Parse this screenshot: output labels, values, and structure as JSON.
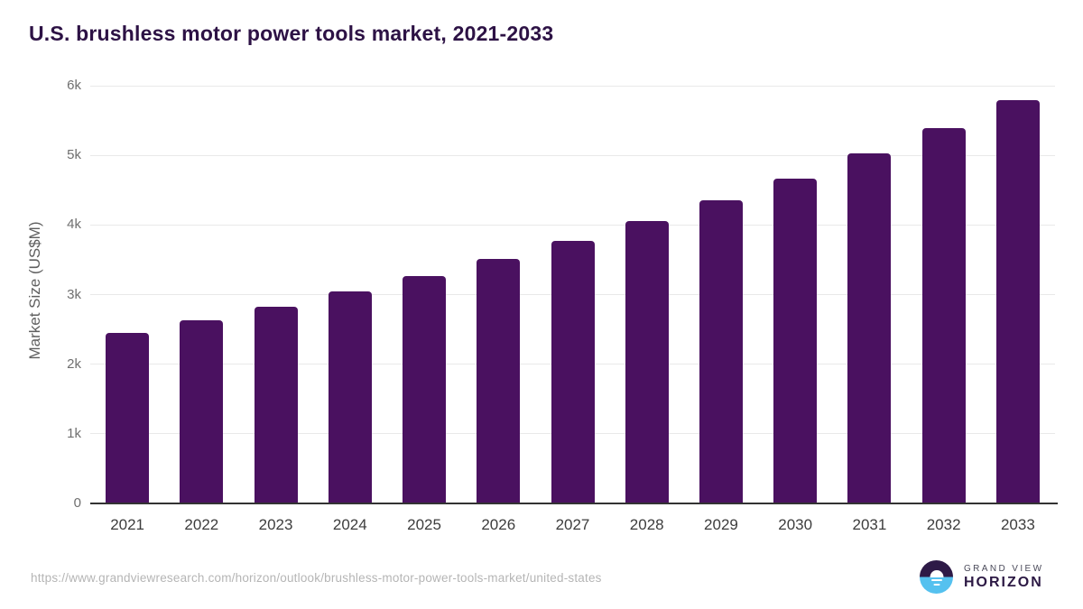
{
  "page": {
    "title": "U.S. brushless motor power tools market, 2021-2033"
  },
  "chart_data": {
    "type": "bar",
    "title": "U.S. brushless motor power tools market, 2021-2033",
    "categories": [
      "2021",
      "2022",
      "2023",
      "2024",
      "2025",
      "2026",
      "2027",
      "2028",
      "2029",
      "2030",
      "2031",
      "2032",
      "2033"
    ],
    "values": [
      2450,
      2630,
      2820,
      3040,
      3260,
      3510,
      3770,
      4050,
      4350,
      4660,
      5030,
      5390,
      5790
    ],
    "xlabel": "",
    "ylabel": "Market Size (US$M)",
    "ylim": [
      0,
      6000
    ],
    "yticks": [
      {
        "value": 0,
        "label": "0"
      },
      {
        "value": 1000,
        "label": "1k"
      },
      {
        "value": 2000,
        "label": "2k"
      },
      {
        "value": 3000,
        "label": "3k"
      },
      {
        "value": 4000,
        "label": "4k"
      },
      {
        "value": 5000,
        "label": "5k"
      },
      {
        "value": 6000,
        "label": "6k"
      }
    ],
    "grid": "horizontal",
    "legend": "none",
    "bar_color": "#4a1160"
  },
  "colors": {
    "title": "#2d1245",
    "bar": "#4a1160",
    "gridline": "#e9e9e9",
    "axis_line": "#333333",
    "y_tick_label": "#6f6f6f",
    "x_tick_label": "#3d3d3d",
    "source_url": "#b5b5b5",
    "logo_dark_purple": "#2e1a47",
    "logo_light_blue": "#55c1ef"
  },
  "footer": {
    "source_url": "https://www.grandviewresearch.com/horizon/outlook/brushless-motor-power-tools-market/united-states",
    "logo": {
      "line1": "GRAND VIEW",
      "line2": "HORIZON"
    }
  }
}
